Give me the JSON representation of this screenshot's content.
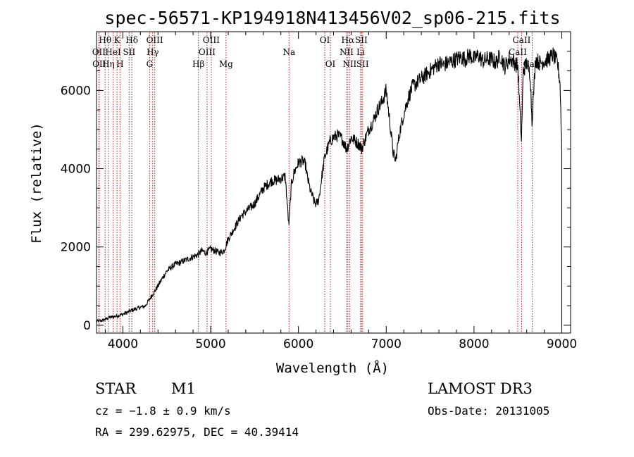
{
  "chart_data": {
    "type": "line",
    "title": "spec-56571-KP194918N413456V02_sp06-215.fits",
    "xlabel": "Wavelength (Å)",
    "ylabel": "Flux (relative)",
    "xlim": [
      3700,
      9100
    ],
    "ylim": [
      -200,
      7500
    ],
    "xticks": [
      4000,
      5000,
      6000,
      7000,
      8000,
      9000
    ],
    "yticks": [
      0,
      2000,
      4000,
      6000
    ],
    "grid": false,
    "series": [
      {
        "x": [
          3700,
          3760,
          3800,
          3850,
          3900,
          3950,
          4000,
          4050,
          4100,
          4150,
          4200,
          4250,
          4300,
          4330,
          4350,
          4400,
          4450,
          4500,
          4550,
          4600,
          4650,
          4700,
          4750,
          4800,
          4850,
          4900,
          4950,
          5000,
          5050,
          5100,
          5150,
          5200,
          5250,
          5300,
          5350,
          5400,
          5450,
          5500,
          5550,
          5600,
          5650,
          5700,
          5750,
          5800,
          5850,
          5890,
          5920,
          5950,
          6000,
          6050,
          6080,
          6100,
          6120,
          6140,
          6160,
          6180,
          6200,
          6230,
          6260,
          6300,
          6330,
          6360,
          6400,
          6450,
          6500,
          6550,
          6600,
          6650,
          6700,
          6720,
          6750,
          6800,
          6850,
          6900,
          6950,
          7000,
          7050,
          7080,
          7110,
          7130,
          7160,
          7200,
          7250,
          7300,
          7350,
          7400,
          7450,
          7500,
          7550,
          7600,
          7650,
          7700,
          7750,
          7800,
          7850,
          7900,
          7950,
          8000,
          8050,
          8100,
          8150,
          8200,
          8250,
          8300,
          8350,
          8400,
          8450,
          8500,
          8520,
          8540,
          8560,
          8600,
          8640,
          8660,
          8700,
          8750,
          8800,
          8850,
          8900,
          8950,
          8980,
          9000
        ],
        "y": [
          100,
          120,
          150,
          200,
          220,
          250,
          280,
          330,
          380,
          420,
          460,
          480,
          650,
          760,
          820,
          1000,
          1200,
          1380,
          1480,
          1560,
          1600,
          1650,
          1700,
          1750,
          1800,
          1900,
          1850,
          1950,
          1900,
          1850,
          1900,
          2200,
          2400,
          2600,
          2800,
          2900,
          3000,
          3100,
          3300,
          3500,
          3600,
          3700,
          3700,
          3750,
          3800,
          2550,
          3600,
          3900,
          4150,
          4200,
          4100,
          3800,
          3600,
          3400,
          3300,
          3150,
          3100,
          3200,
          3700,
          4300,
          4500,
          4700,
          4800,
          4850,
          4750,
          4500,
          4800,
          4700,
          4600,
          4500,
          4700,
          5000,
          5200,
          5500,
          5700,
          6000,
          5000,
          4400,
          4200,
          4600,
          5000,
          5400,
          5800,
          6100,
          6200,
          6300,
          6400,
          6500,
          6600,
          6700,
          6650,
          6700,
          6750,
          6800,
          6850,
          6800,
          6900,
          6800,
          6900,
          6750,
          6800,
          6800,
          6700,
          6900,
          6600,
          6800,
          6750,
          6600,
          5600,
          4700,
          6500,
          6700,
          6400,
          5200,
          6800,
          6700,
          6750,
          6800,
          6900,
          6700,
          6200,
          4500
        ]
      }
    ],
    "emission_lines": [
      {
        "label": "Hθ",
        "wave": 3798,
        "row": 1
      },
      {
        "label": "K",
        "wave": 3934,
        "row": 1
      },
      {
        "label": "Hδ",
        "wave": 4102,
        "row": 1
      },
      {
        "label": "OIII",
        "wave": 4363,
        "row": 1
      },
      {
        "label": "OIII",
        "wave": 5007,
        "row": 1
      },
      {
        "label": "OI",
        "wave": 6300,
        "row": 1
      },
      {
        "label": "Hα",
        "wave": 6563,
        "row": 1
      },
      {
        "label": "SII",
        "wave": 6716,
        "row": 1
      },
      {
        "label": "CaII",
        "wave": 8542,
        "row": 1
      },
      {
        "label": "OII",
        "wave": 3727,
        "row": 2
      },
      {
        "label": "HeI",
        "wave": 3889,
        "row": 2
      },
      {
        "label": "SII",
        "wave": 4072,
        "row": 2
      },
      {
        "label": "Hγ",
        "wave": 4340,
        "row": 2
      },
      {
        "label": "OIII",
        "wave": 4959,
        "row": 2
      },
      {
        "label": "Na",
        "wave": 5893,
        "row": 2
      },
      {
        "label": "NII",
        "wave": 6548,
        "row": 2
      },
      {
        "label": "Li",
        "wave": 6708,
        "row": 2
      },
      {
        "label": "CaII",
        "wave": 8498,
        "row": 2
      },
      {
        "label": "OII",
        "wave": 3730,
        "row": 3
      },
      {
        "label": "Hη",
        "wave": 3835,
        "row": 3
      },
      {
        "label": "H",
        "wave": 3968,
        "row": 3
      },
      {
        "label": "G",
        "wave": 4305,
        "row": 3
      },
      {
        "label": "Hβ",
        "wave": 4861,
        "row": 3
      },
      {
        "label": "Mg",
        "wave": 5175,
        "row": 3
      },
      {
        "label": "OI",
        "wave": 6364,
        "row": 3
      },
      {
        "label": "NII",
        "wave": 6583,
        "row": 3
      },
      {
        "label": "SII",
        "wave": 6731,
        "row": 3
      },
      {
        "label": "CaII",
        "wave": 8662,
        "row": 3
      }
    ]
  },
  "info": {
    "object_class": "STAR",
    "subclass": "M1",
    "survey": "LAMOST DR3",
    "cz": "cz = −1.8 ± 0.9 km/s",
    "obs_date": "Obs-Date: 20131005",
    "radec": "RA = 299.62975, DEC =  40.39414"
  },
  "colors": {
    "spectrum": "#000000",
    "emission_line": "#b22222",
    "axes": "#000000"
  }
}
